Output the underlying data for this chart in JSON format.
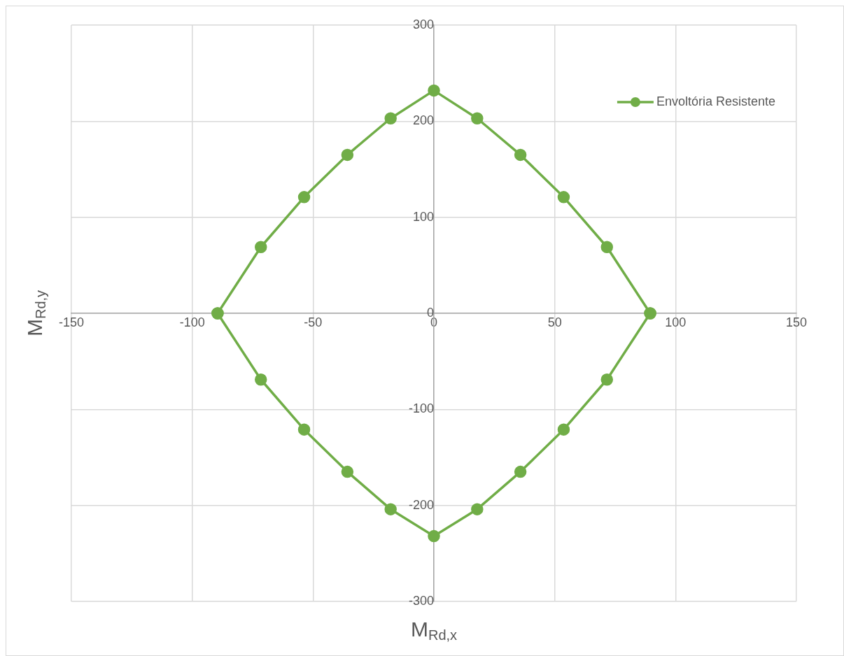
{
  "chart_data": {
    "type": "line",
    "xlabel": "M$_{Rd,x}$",
    "ylabel": "M$_{Rd,y}$",
    "x": [
      -89.5,
      -71.6,
      -53.7,
      -35.8,
      -17.9,
      0,
      17.9,
      35.8,
      53.7,
      71.6,
      89.5
    ],
    "series": [
      {
        "name": "Envoltória Resistente",
        "color": "#70ad47",
        "values": [
          0,
          69,
          121,
          165,
          203,
          232,
          203,
          165,
          121,
          69,
          0
        ]
      },
      {
        "color": "#70ad47",
        "values": [
          0,
          -69,
          -121,
          -165,
          -204,
          -232,
          -204,
          -165,
          -121,
          -69,
          0
        ]
      }
    ],
    "xlim": [
      -150,
      150
    ],
    "xticks": [
      -150,
      -100,
      -50,
      0,
      50,
      100,
      150
    ],
    "ylim": [
      -300,
      300
    ],
    "yticks": [
      -300,
      -200,
      -100,
      0,
      100,
      200,
      300
    ],
    "grid": true,
    "legend": "top right",
    "marker": "circle",
    "line_style": "solid"
  }
}
